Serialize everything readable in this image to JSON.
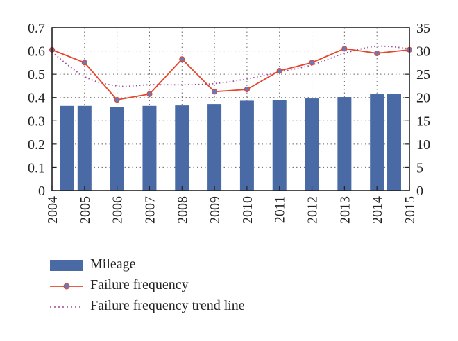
{
  "chart_data": {
    "type": "bar",
    "categories": [
      "2004",
      "2005",
      "2006",
      "2007",
      "2008",
      "2009",
      "2010",
      "2011",
      "2012",
      "2013",
      "2014",
      "2015"
    ],
    "left_axis": {
      "ylim": [
        0,
        0.7
      ],
      "ticks": [
        "0",
        "0.1",
        "0.2",
        "0.3",
        "0.4",
        "0.5",
        "0.6",
        "0.7"
      ]
    },
    "right_axis": {
      "ylim": [
        0,
        35
      ],
      "ticks": [
        "0",
        "5",
        "10",
        "15",
        "20",
        "25",
        "30",
        "35"
      ]
    },
    "grid": "dotted",
    "legend_position": "bottom-left",
    "series": [
      {
        "name": "Mileage",
        "type": "bar",
        "axis": "right",
        "color": "#4a6aa5",
        "values": [
          18.2,
          18.2,
          17.9,
          18.2,
          18.3,
          18.6,
          19.3,
          19.5,
          19.8,
          20.1,
          20.7,
          20.7
        ]
      },
      {
        "name": "Failure frequency",
        "type": "line",
        "axis": "left",
        "color": "#e8442a",
        "marker_color": "#6a7ab8",
        "values": [
          0.605,
          0.55,
          0.39,
          0.415,
          0.565,
          0.425,
          0.435,
          0.515,
          0.55,
          0.61,
          0.59,
          0.605
        ]
      },
      {
        "name": "Failure frequency trend line",
        "type": "line",
        "style": "dotted",
        "axis": "left",
        "color": "#9a4a9a",
        "values": [
          0.595,
          0.49,
          0.45,
          0.455,
          0.455,
          0.46,
          0.48,
          0.51,
          0.54,
          0.59,
          0.62,
          0.61
        ]
      }
    ]
  }
}
